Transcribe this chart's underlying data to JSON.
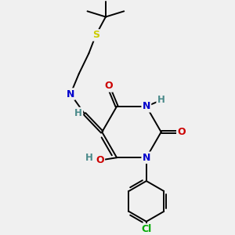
{
  "bg_color": "#f0f0f0",
  "atom_colors": {
    "C": "#000000",
    "N": "#0000cc",
    "O": "#cc0000",
    "S": "#cccc00",
    "H": "#4a8a8a",
    "Cl": "#00aa00"
  },
  "bond_color": "#000000",
  "bond_width": 1.4,
  "fig_width": 3.0,
  "fig_height": 3.0,
  "dpi": 100
}
